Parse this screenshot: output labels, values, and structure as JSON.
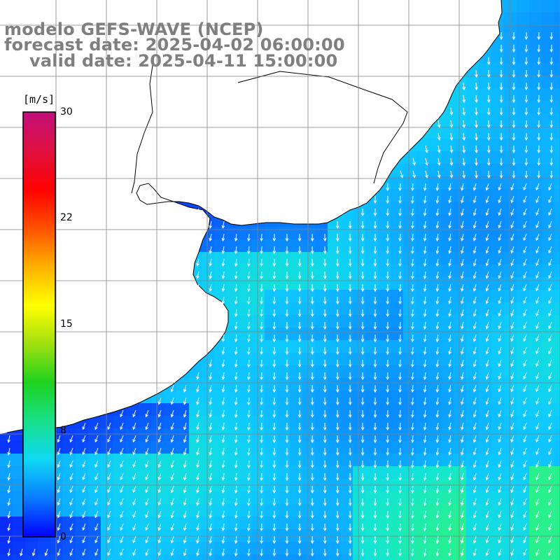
{
  "titles": {
    "model": "modelo GEFS-WAVE (NCEP)",
    "forecast": "forecast date: 2025-04-02 06:00:00",
    "valid": "valid date: 2025-04-11 15:00:00"
  },
  "colorbar": {
    "unit": "[m/s]",
    "ticks": [
      "30",
      "22",
      "15",
      "8",
      "0"
    ],
    "colors": [
      "#0000ff",
      "#0a7bff",
      "#0fd8f5",
      "#18e088",
      "#1ed21e",
      "#a2e010",
      "#ffff00",
      "#ffb000",
      "#ff5000",
      "#ff0000",
      "#e01040",
      "#c0107a"
    ]
  },
  "map": {
    "field": "wind speed and direction",
    "land_color": "#ffffff",
    "coast_color": "#000000",
    "grid_color": "#808080",
    "arrow_color": "#ffffff",
    "prevailing_direction": "SSW"
  }
}
